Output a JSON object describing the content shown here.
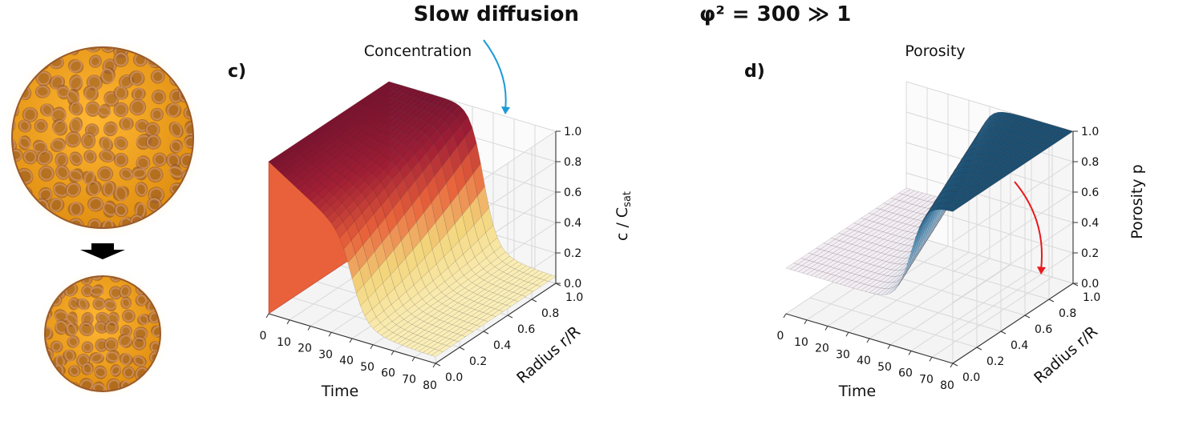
{
  "figure": {
    "title": "Slow diffusion",
    "title_formula": "φ² = 300 ≫ 1"
  },
  "colors": {
    "pore_fill": "#f5a623",
    "strand": "#b5703e",
    "glow": "#fde9b8",
    "conc_dark": "#7a1330",
    "conc_face": "#e8613a",
    "conc_light": "#f3e6a6",
    "poro_dark": "#1b4f72",
    "poro_light": "#ffffff",
    "arrow_conc": "#1a9ad6",
    "arrow_poro": "#e8191c"
  },
  "chart_data": [
    {
      "type": "surface3d",
      "panel_label": "c)",
      "title": "Concentration",
      "xlabel": "Time",
      "ylabel": "Radius  r/R",
      "zlabel": "c / C",
      "zlabel_sub": "sat",
      "xticks": [
        "0",
        "10",
        "20",
        "30",
        "40",
        "50",
        "60",
        "70",
        "80"
      ],
      "yticks": [
        "0.0",
        "0.2",
        "0.4",
        "0.6",
        "0.8",
        "1.0"
      ],
      "zticks": [
        "0.0",
        "0.2",
        "0.4",
        "0.6",
        "0.8",
        "1.0"
      ],
      "xlim": [
        0,
        80
      ],
      "ylim": [
        0,
        1
      ],
      "zlim": [
        0,
        1
      ],
      "grid": true,
      "colormap": "YlOrRd",
      "description_points": {
        "t": [
          0,
          10,
          20,
          30,
          40,
          50,
          60,
          70,
          80
        ],
        "c_at_r1": [
          1.0,
          0.95,
          0.9,
          0.85,
          0.55,
          0.15,
          0.05,
          0.02,
          0.0
        ],
        "c_at_r0": [
          1.0,
          0.85,
          0.75,
          0.6,
          0.3,
          0.05,
          0.0,
          0.0,
          0.0
        ]
      }
    },
    {
      "type": "surface3d",
      "panel_label": "d)",
      "title": "Porosity",
      "xlabel": "Time",
      "ylabel": "Radius  r/R",
      "zlabel": "Porosity  p",
      "xticks": [
        "0",
        "10",
        "20",
        "30",
        "40",
        "50",
        "60",
        "70",
        "80"
      ],
      "yticks": [
        "0.0",
        "0.2",
        "0.4",
        "0.6",
        "0.8",
        "1.0"
      ],
      "zticks": [
        "0.0",
        "0.2",
        "0.4",
        "0.6",
        "0.8",
        "1.0"
      ],
      "xlim": [
        0,
        80
      ],
      "ylim": [
        0,
        1
      ],
      "zlim": [
        0,
        1
      ],
      "grid": true,
      "colormap": "Blues",
      "description_points": {
        "t": [
          0,
          10,
          20,
          30,
          40,
          50,
          60,
          70,
          80
        ],
        "p_at_r1": [
          0.3,
          0.3,
          0.32,
          0.5,
          1.0,
          1.0,
          1.0,
          1.0,
          1.0
        ],
        "p_at_r0": [
          0.3,
          0.3,
          0.3,
          0.3,
          0.35,
          0.5,
          0.9,
          1.0,
          1.0
        ]
      }
    }
  ]
}
